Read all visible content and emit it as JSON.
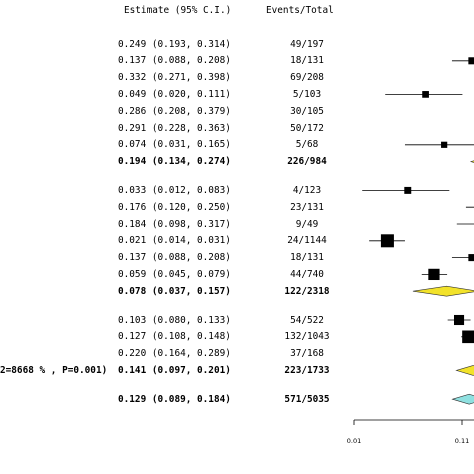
{
  "header": {
    "estimate_label": "Estimate (95% C.I.)",
    "events_label": "Events/Total"
  },
  "chart_data": {
    "type": "forest",
    "x_scale": "log",
    "xlim": [
      0.01,
      0.11
    ],
    "ticks": [
      {
        "value": 0.01,
        "label": "0.01"
      },
      {
        "value": 0.11,
        "label": "0.11"
      }
    ],
    "colors": {
      "subgroup_diamond": "#f2e22a",
      "overall_diamond": "#8fe0e0",
      "marker": "#000000",
      "line": "#000000"
    },
    "rows": [
      {
        "kind": "study",
        "est": 0.249,
        "lo": 0.193,
        "hi": 0.314,
        "text": "0.249 (0.193, 0.314)",
        "events": "49/197",
        "weight": 197
      },
      {
        "kind": "study",
        "est": 0.137,
        "lo": 0.088,
        "hi": 0.208,
        "text": "0.137 (0.088, 0.208)",
        "events": "18/131",
        "weight": 131
      },
      {
        "kind": "study",
        "est": 0.332,
        "lo": 0.271,
        "hi": 0.398,
        "text": "0.332 (0.271, 0.398)",
        "events": "69/208",
        "weight": 208
      },
      {
        "kind": "study",
        "est": 0.049,
        "lo": 0.02,
        "hi": 0.111,
        "text": "0.049 (0.020, 0.111)",
        "events": "5/103",
        "weight": 103
      },
      {
        "kind": "study",
        "est": 0.286,
        "lo": 0.208,
        "hi": 0.379,
        "text": "0.286 (0.208, 0.379)",
        "events": "30/105",
        "weight": 105
      },
      {
        "kind": "study",
        "est": 0.291,
        "lo": 0.228,
        "hi": 0.363,
        "text": "0.291 (0.228, 0.363)",
        "events": "50/172",
        "weight": 172
      },
      {
        "kind": "study",
        "est": 0.074,
        "lo": 0.031,
        "hi": 0.165,
        "text": "0.074 (0.031, 0.165)",
        "events": "5/68",
        "weight": 68
      },
      {
        "kind": "subtotal",
        "est": 0.194,
        "lo": 0.134,
        "hi": 0.274,
        "text": "0.194 (0.134, 0.274)",
        "events": "226/984"
      },
      {
        "kind": "gap"
      },
      {
        "kind": "study",
        "est": 0.033,
        "lo": 0.012,
        "hi": 0.083,
        "text": "0.033 (0.012, 0.083)",
        "events": "4/123",
        "weight": 123
      },
      {
        "kind": "study",
        "est": 0.176,
        "lo": 0.12,
        "hi": 0.25,
        "text": "0.176 (0.120, 0.250)",
        "events": "23/131",
        "weight": 131
      },
      {
        "kind": "study",
        "est": 0.184,
        "lo": 0.098,
        "hi": 0.317,
        "text": "0.184 (0.098, 0.317)",
        "events": "9/49",
        "weight": 49
      },
      {
        "kind": "study",
        "est": 0.021,
        "lo": 0.014,
        "hi": 0.031,
        "text": "0.021 (0.014, 0.031)",
        "events": "24/1144",
        "weight": 1144
      },
      {
        "kind": "study",
        "est": 0.137,
        "lo": 0.088,
        "hi": 0.208,
        "text": "0.137 (0.088, 0.208)",
        "events": "18/131",
        "weight": 131
      },
      {
        "kind": "study",
        "est": 0.059,
        "lo": 0.045,
        "hi": 0.079,
        "text": "0.059 (0.045, 0.079)",
        "events": "44/740",
        "weight": 740
      },
      {
        "kind": "subtotal",
        "est": 0.078,
        "lo": 0.037,
        "hi": 0.157,
        "text": "0.078 (0.037, 0.157)",
        "events": "122/2318"
      },
      {
        "kind": "gap"
      },
      {
        "kind": "study",
        "est": 0.103,
        "lo": 0.08,
        "hi": 0.133,
        "text": "0.103 (0.080, 0.133)",
        "events": "54/522",
        "weight": 522
      },
      {
        "kind": "study",
        "est": 0.127,
        "lo": 0.108,
        "hi": 0.148,
        "text": "0.127 (0.108, 0.148)",
        "events": "132/1043",
        "weight": 1043
      },
      {
        "kind": "study",
        "est": 0.22,
        "lo": 0.164,
        "hi": 0.289,
        "text": "0.220 (0.164, 0.289)",
        "events": "37/168",
        "weight": 168
      },
      {
        "kind": "subtotal",
        "est": 0.141,
        "lo": 0.097,
        "hi": 0.201,
        "text": "0.141 (0.097, 0.201)",
        "events": "223/1733",
        "het": "2=8668 % , P=0.001)"
      },
      {
        "kind": "gap"
      },
      {
        "kind": "overall",
        "est": 0.129,
        "lo": 0.089,
        "hi": 0.184,
        "text": "0.129 (0.089, 0.184)",
        "events": "571/5035"
      }
    ]
  }
}
